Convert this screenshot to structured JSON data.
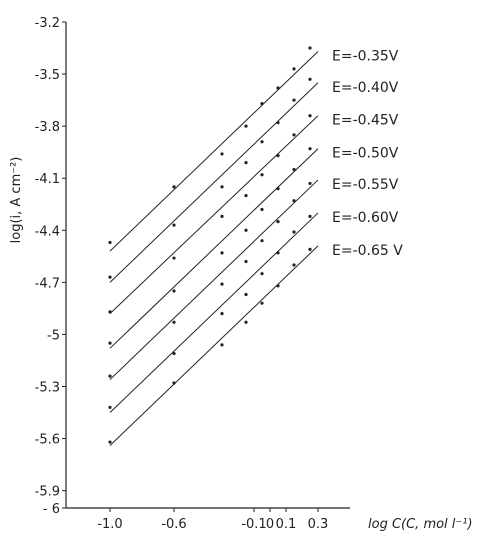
{
  "chart_data": {
    "type": "scatter",
    "ylabel": "log(i, A cm⁻²)",
    "xlabel": "log C(C, mol l⁻¹)",
    "xlim": [
      -1.0,
      0.3
    ],
    "ylim": [
      -6.0,
      -3.2
    ],
    "y_ticks": [
      {
        "value": -3.2,
        "label": "-3.2"
      },
      {
        "value": -3.5,
        "label": "-3.5"
      },
      {
        "value": -3.8,
        "label": "-3.8"
      },
      {
        "value": -4.1,
        "label": "-4.1"
      },
      {
        "value": -4.4,
        "label": "-4.4"
      },
      {
        "value": -4.7,
        "label": "-4.7"
      },
      {
        "value": -5.0,
        "label": "-5"
      },
      {
        "value": -5.3,
        "label": "-5.3"
      },
      {
        "value": -5.6,
        "label": "-5.6"
      },
      {
        "value": -5.9,
        "label": "-5.9"
      },
      {
        "value": -6.0,
        "label": "- 6"
      }
    ],
    "x_ticks": [
      {
        "value": -1.0,
        "label": "-1.0"
      },
      {
        "value": -0.6,
        "label": "-0.6"
      },
      {
        "value": -0.1,
        "label": "-0.1"
      },
      {
        "value": 0.0,
        "label": "0"
      },
      {
        "value": 0.1,
        "label": "0.1"
      },
      {
        "value": 0.3,
        "label": "0.3"
      }
    ],
    "x": [
      -1.0,
      -0.6,
      -0.3,
      -0.15,
      -0.05,
      0.05,
      0.15,
      0.25
    ],
    "series": [
      {
        "name": "E=-0.35V",
        "y": [
          -4.47,
          -4.15,
          -3.96,
          -3.8,
          -3.67,
          -3.58,
          -3.47,
          -3.35
        ],
        "fit": [
          [
            -1.0,
            -4.52
          ],
          [
            0.3,
            -3.37
          ]
        ]
      },
      {
        "name": "E=-0.40V",
        "y": [
          -4.67,
          -4.37,
          -4.15,
          -4.01,
          -3.89,
          -3.78,
          -3.65,
          -3.53
        ],
        "fit": [
          [
            -1.0,
            -4.7
          ],
          [
            0.3,
            -3.55
          ]
        ]
      },
      {
        "name": "E=-0.45V",
        "y": [
          -4.87,
          -4.56,
          -4.32,
          -4.2,
          -4.08,
          -3.97,
          -3.85,
          -3.74
        ],
        "fit": [
          [
            -1.0,
            -4.88
          ],
          [
            0.3,
            -3.74
          ]
        ]
      },
      {
        "name": "E=-0.50V",
        "y": [
          -5.05,
          -4.75,
          -4.53,
          -4.4,
          -4.28,
          -4.16,
          -4.05,
          -3.93
        ],
        "fit": [
          [
            -1.0,
            -5.08
          ],
          [
            0.3,
            -3.93
          ]
        ]
      },
      {
        "name": "E=-0.55V",
        "y": [
          -5.24,
          -4.93,
          -4.71,
          -4.58,
          -4.46,
          -4.35,
          -4.23,
          -4.13
        ],
        "fit": [
          [
            -1.0,
            -5.26
          ],
          [
            0.3,
            -4.11
          ]
        ]
      },
      {
        "name": "E=-0.60V",
        "y": [
          -5.42,
          -5.11,
          -4.88,
          -4.77,
          -4.65,
          -4.53,
          -4.41,
          -4.32
        ],
        "fit": [
          [
            -1.0,
            -5.45
          ],
          [
            0.3,
            -4.3
          ]
        ]
      },
      {
        "name": "E=-0.65 V",
        "y": [
          -5.62,
          -5.28,
          -5.06,
          -4.93,
          -4.82,
          -4.72,
          -4.6,
          -4.51
        ],
        "fit": [
          [
            -1.0,
            -5.64
          ],
          [
            0.3,
            -4.49
          ]
        ]
      }
    ],
    "grid": false,
    "legend": "none"
  }
}
